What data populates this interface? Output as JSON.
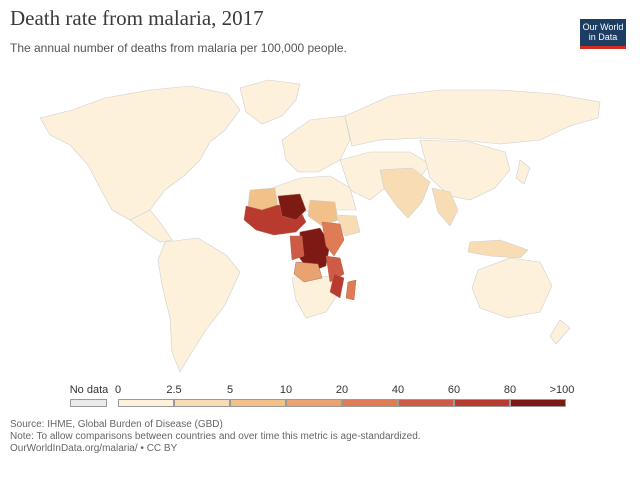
{
  "header": {
    "title": "Death rate from malaria, 2017",
    "subtitle": "The annual number of deaths from malaria per 100,000 people."
  },
  "logo": {
    "line1": "Our World",
    "line2": "in Data"
  },
  "legend": {
    "no_data_label": "No data",
    "ticks": [
      "0",
      "2.5",
      "5",
      "10",
      "20",
      "40",
      "60",
      "80",
      ">100"
    ],
    "colors": [
      "#fdf1dc",
      "#f8ddb4",
      "#f1c189",
      "#e9a370",
      "#df7b55",
      "#cf5a46",
      "#b93b2f",
      "#7e1a14"
    ],
    "no_data_color": "#ebebeb"
  },
  "footer": {
    "source": "Source: IHME, Global Burden of Disease (GBD)",
    "note": "Note: To allow comparisons between countries and over time this metric is age-standardized.",
    "url": "OurWorldInData.org/malaria/ • CC BY"
  }
}
